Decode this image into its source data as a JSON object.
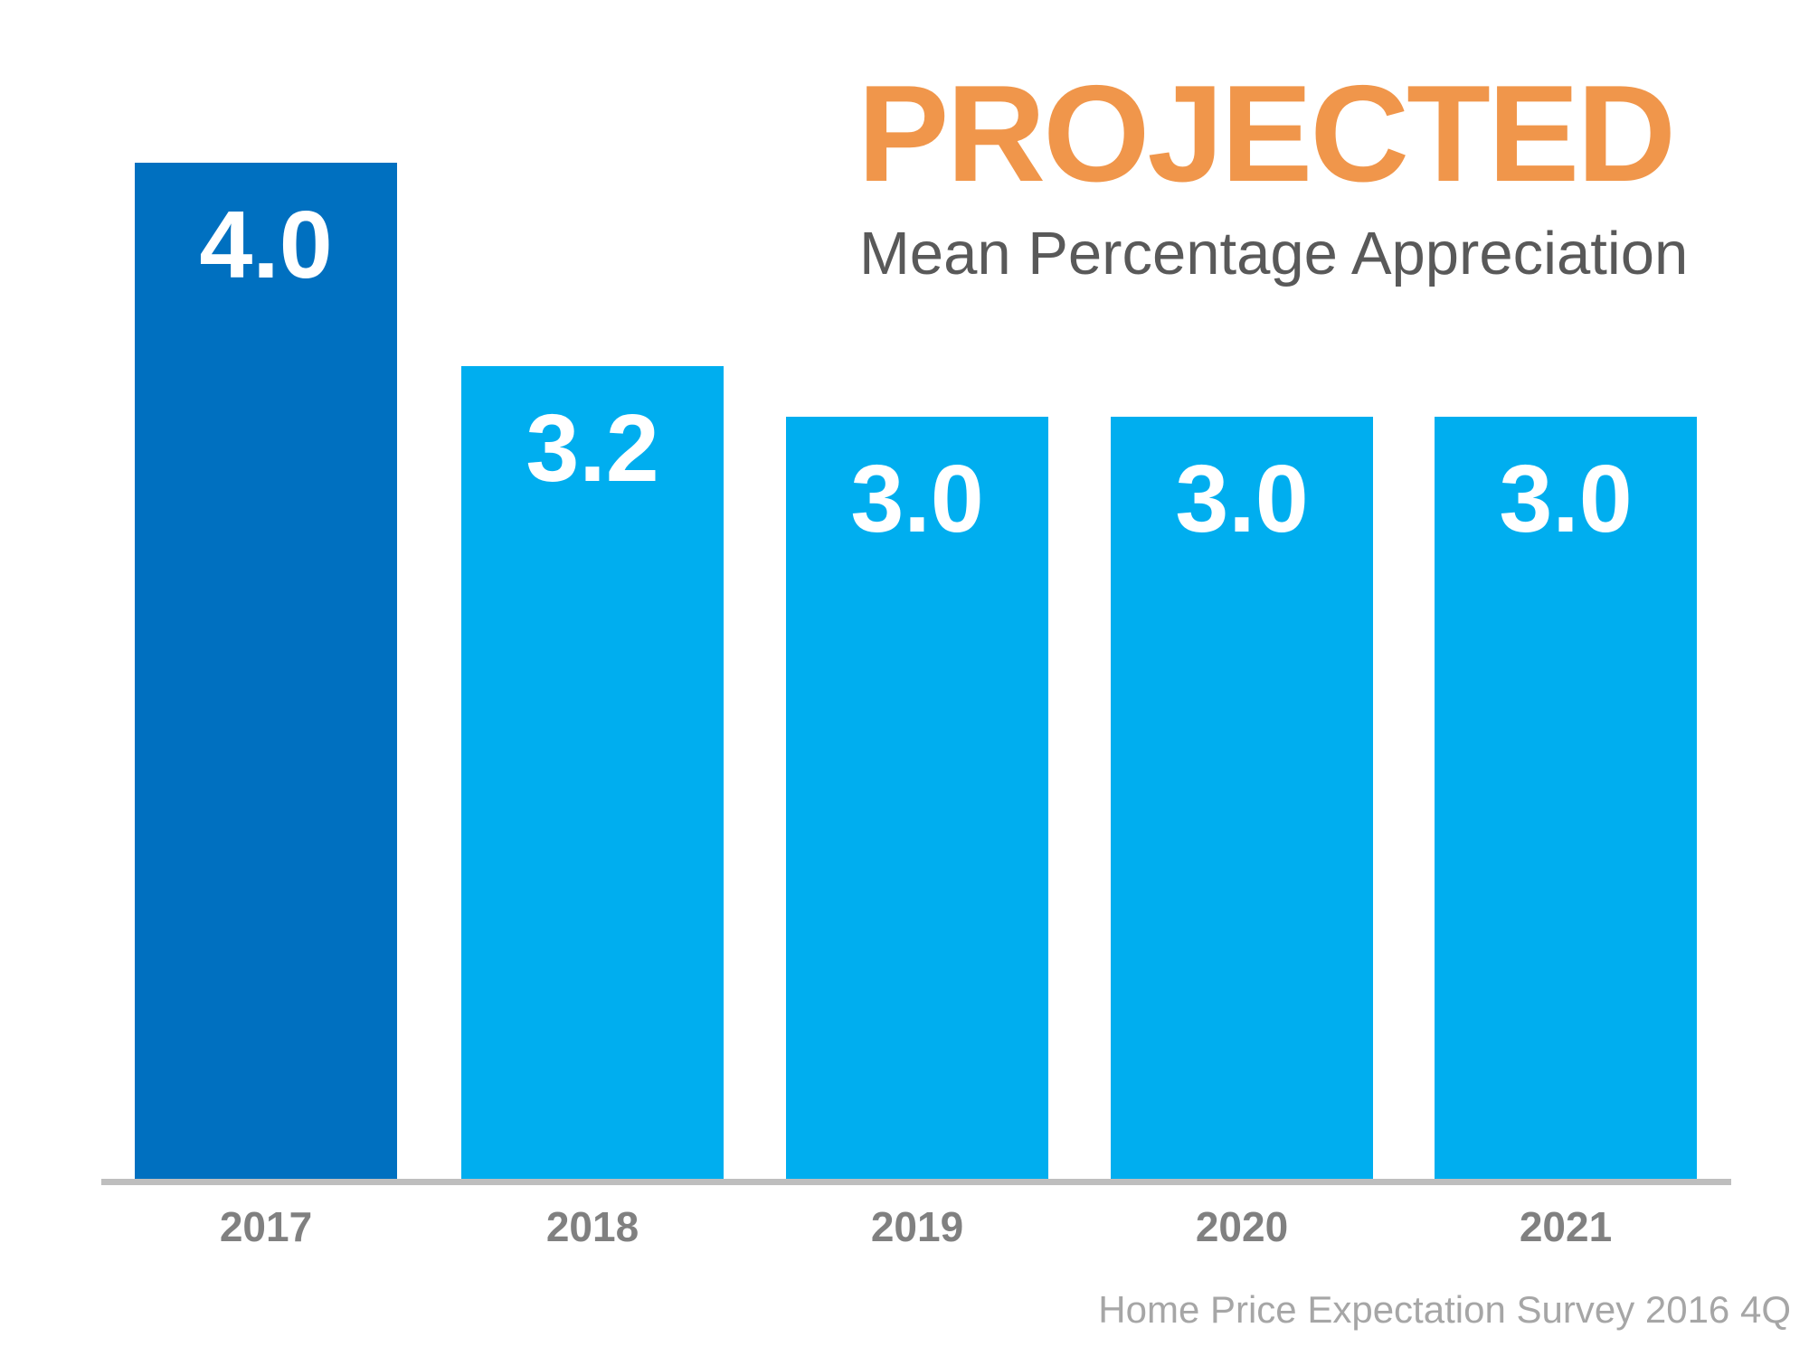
{
  "chart_data": {
    "type": "bar",
    "title": "PROJECTED",
    "subtitle": "Mean Percentage Appreciation",
    "categories": [
      "2017",
      "2018",
      "2019",
      "2020",
      "2021"
    ],
    "values": [
      4.0,
      3.2,
      3.0,
      3.0,
      3.0
    ],
    "value_labels": [
      "4.0",
      "3.2",
      "3.0",
      "3.0",
      "3.0"
    ],
    "xlabel": "",
    "ylabel": "",
    "ylim": [
      0,
      4.4
    ],
    "grid": false,
    "legend": false,
    "value_label_position": "inside-top",
    "bar_colors": [
      "#0070C0",
      "#00AEEF",
      "#00AEEF",
      "#00AEEF",
      "#00AEEF"
    ],
    "annotation": "Home Price Expectation Survey 2016 4Q"
  },
  "colors": {
    "title_orange": "#F0964B",
    "subtitle_gray": "#595959",
    "bar_dark_blue": "#0070C0",
    "bar_light_blue": "#00AEEF",
    "axis_gray": "#BEBEBE",
    "tick_label_gray": "#808080",
    "source_gray": "#A6A6A6",
    "value_label_white": "#FFFFFF",
    "background": "#FFFFFF"
  }
}
